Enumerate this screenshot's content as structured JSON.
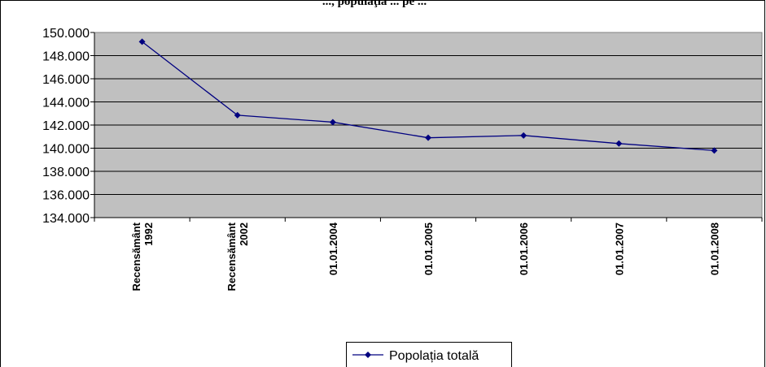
{
  "chart_data": {
    "type": "line",
    "title": "..., populaţia ... pe ...",
    "categories": [
      [
        "Recensământ",
        "1992"
      ],
      [
        "Recensământ",
        "2002"
      ],
      [
        "01.01.2004"
      ],
      [
        "01.01.2005"
      ],
      [
        "01.01.2006"
      ],
      [
        "01.01.2007"
      ],
      [
        "01.01.2008"
      ]
    ],
    "series": [
      {
        "name": "Popolația totală",
        "color": "#000080",
        "values": [
          149200,
          142850,
          142250,
          140900,
          141100,
          140400,
          139800
        ]
      }
    ],
    "ylim": [
      134000,
      150000
    ],
    "ytick_step": 2000,
    "ytick_labels": [
      "134.000",
      "136.000",
      "138.000",
      "140.000",
      "142.000",
      "144.000",
      "146.000",
      "148.000",
      "150.000"
    ],
    "plot_background": "#c0c0c0",
    "grid": true,
    "legend_position": "bottom"
  }
}
